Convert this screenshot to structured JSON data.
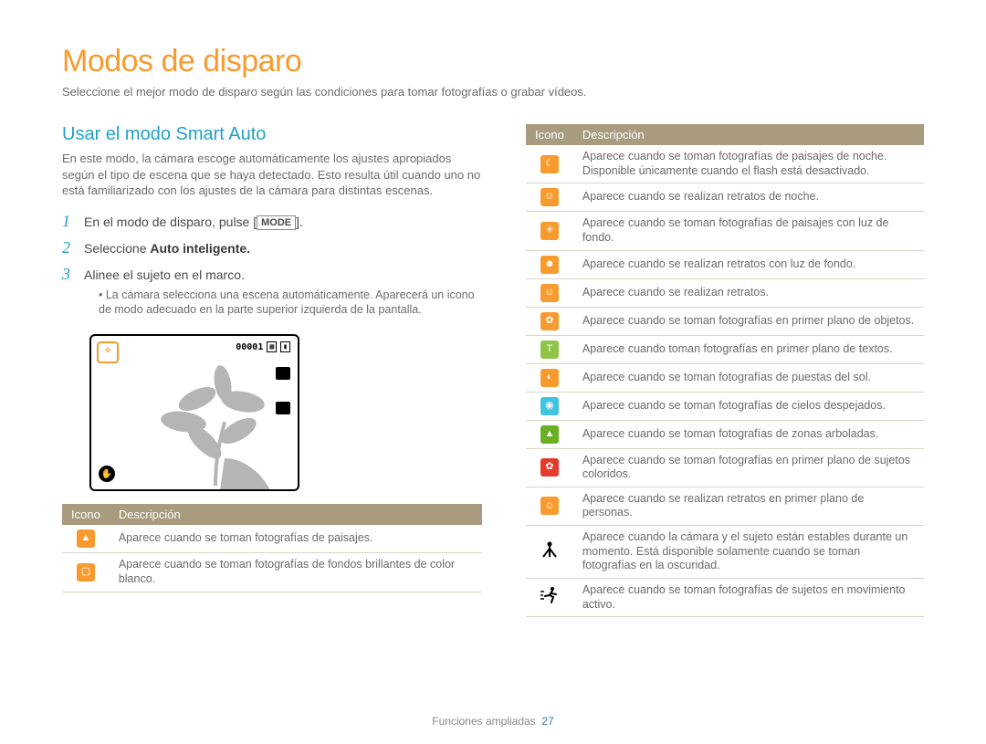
{
  "page": {
    "title": "Modos de disparo",
    "subtitle": "Seleccione el mejor modo de disparo según las condiciones para tomar fotografías o grabar vídeos.",
    "footer_label": "Funciones ampliadas",
    "footer_page": "27"
  },
  "section": {
    "heading": "Usar el modo Smart Auto",
    "intro": "En este modo, la cámara escoge automáticamente los ajustes apropiados según el tipo de escena que se haya detectado. Esto resulta útil cuando uno no está familiarizado con los ajustes de la cámara para distintas escenas."
  },
  "steps": {
    "s1_pre": "En el modo de disparo, pulse [",
    "s1_key": "MODE",
    "s1_post": "].",
    "s2_pre": "Seleccione ",
    "s2_bold": "Auto inteligente.",
    "s3": "Alinee el sujeto en el marco.",
    "bullet": "La cámara selecciona una escena automáticamente. Aparecerá un icono de modo adecuado en la parte superior izquierda de la pantalla."
  },
  "lcd": {
    "counter": "00001",
    "flower_color": "#b5b5b5"
  },
  "table_headers": {
    "icon": "Icono",
    "desc": "Descripción"
  },
  "left_rows": [
    {
      "bg": "#f79b2e",
      "glyph": "▲",
      "desc": "Aparece cuando se toman fotografías de paisajes."
    },
    {
      "bg": "#f79b2e",
      "glyph": "▢",
      "desc": "Aparece cuando se toman fotografías de fondos brillantes de color blanco."
    }
  ],
  "right_rows": [
    {
      "bg": "#f79b2e",
      "glyph": "☾",
      "desc": "Aparece cuando se toman fotografías de paisajes de noche. Disponible únicamente cuando el flash está desactivado."
    },
    {
      "bg": "#f79b2e",
      "glyph": "☺",
      "desc": "Aparece cuando se realizan retratos de noche."
    },
    {
      "bg": "#f79b2e",
      "glyph": "☀",
      "desc": "Aparece cuando se toman fotografías de paisajes con luz de fondo."
    },
    {
      "bg": "#f79b2e",
      "glyph": "☻",
      "desc": "Aparece cuando se realizan retratos con luz de fondo."
    },
    {
      "bg": "#f79b2e",
      "glyph": "☺",
      "desc": "Aparece cuando se realizan retratos."
    },
    {
      "bg": "#f79b2e",
      "glyph": "✿",
      "desc": "Aparece cuando se toman fotografías en primer plano de objetos."
    },
    {
      "bg": "#8fc447",
      "glyph": "T",
      "desc": "Aparece cuando toman fotografías en primer plano de textos."
    },
    {
      "bg": "#f79b2e",
      "glyph": "◐",
      "desc": "Aparece cuando se toman fotografías de puestas del sol."
    },
    {
      "bg": "#3fc3e2",
      "glyph": "◉",
      "desc": "Aparece cuando se toman fotografías de cielos despejados."
    },
    {
      "bg": "#6ab023",
      "glyph": "▲",
      "desc": "Aparece cuando se toman fotografías de zonas arboladas."
    },
    {
      "bg": "#e53b2c",
      "glyph": "✿",
      "desc": "Aparece cuando se toman fotografías en primer plano de sujetos coloridos."
    },
    {
      "bg": "#f79b2e",
      "glyph": "☺",
      "desc": "Aparece cuando se realizan retratos en primer plano de personas."
    },
    {
      "bg": "",
      "glyph": "tripod",
      "desc": "Aparece cuando la cámara y el sujeto están estables durante un momento. Está disponible solamente cuando se toman fotografías en la oscuridad."
    },
    {
      "bg": "",
      "glyph": "motion",
      "desc": "Aparece cuando se toman fotografías de sujetos en movimiento activo."
    }
  ],
  "colors": {
    "accent_orange": "#f79b2e",
    "accent_blue": "#1fa2c6",
    "table_header": "#a89b7e",
    "border": "#d9d4c7"
  }
}
